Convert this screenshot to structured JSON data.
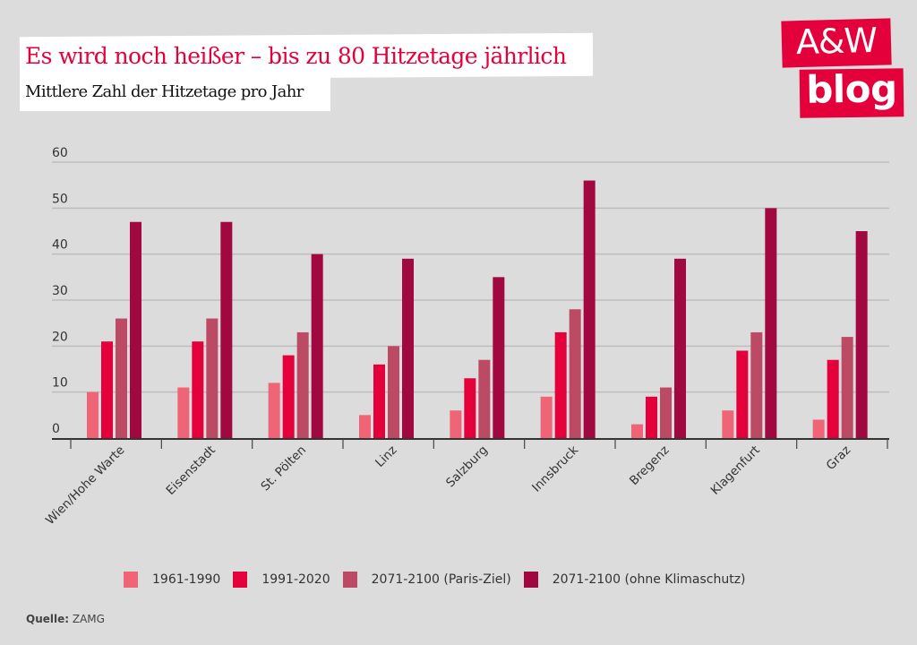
{
  "header": {
    "title": "Es wird noch heißer – bis zu 80 Hitzetage jährlich",
    "subtitle": "Mittlere Zahl der Hitzetage pro Jahr"
  },
  "logo": {
    "line1": "A&W",
    "line2": "blog",
    "color": "#e4003a"
  },
  "source": {
    "label": "Quelle:",
    "value": "ZAMG"
  },
  "chart_data": {
    "type": "bar",
    "title": "Es wird noch heißer – bis zu 80 Hitzetage jährlich",
    "subtitle": "Mittlere Zahl der Hitzetage pro Jahr",
    "xlabel": "",
    "ylabel": "",
    "ylim": [
      0,
      60
    ],
    "yticks": [
      0,
      10,
      20,
      30,
      40,
      50,
      60
    ],
    "yticklabels": [
      "0",
      "10",
      "20",
      "30",
      "40",
      "50",
      "60"
    ],
    "grid": true,
    "legend_position": "bottom",
    "categories": [
      "Wien/Hohe Warte",
      "Eisenstadt",
      "St. Pölten",
      "Linz",
      "Salzburg",
      "Innsbruck",
      "Bregenz",
      "Klagenfurt",
      "Graz"
    ],
    "series": [
      {
        "name": "1961-1990",
        "color": "#ef6577",
        "values": [
          10,
          11,
          12,
          5,
          6,
          9,
          3,
          6,
          4
        ]
      },
      {
        "name": "1991-2020",
        "color": "#e4003a",
        "values": [
          21,
          21,
          18,
          16,
          13,
          23,
          9,
          19,
          17
        ]
      },
      {
        "name": "2071-2100 (Paris-Ziel)",
        "color": "#bd4a64",
        "values": [
          26,
          26,
          23,
          20,
          17,
          28,
          11,
          23,
          22
        ]
      },
      {
        "name": "2071-2100 (ohne Klimaschutz)",
        "color": "#a10840",
        "values": [
          47,
          47,
          40,
          39,
          35,
          56,
          39,
          50,
          45
        ]
      }
    ]
  }
}
